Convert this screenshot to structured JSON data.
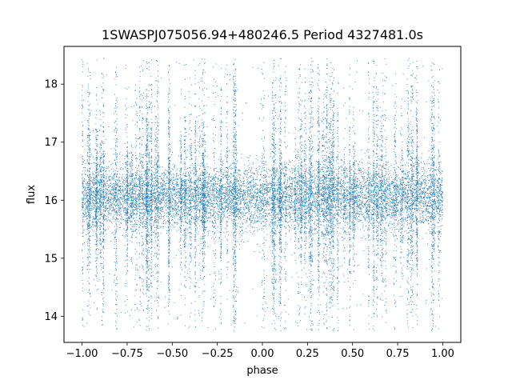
{
  "chart_data": {
    "type": "scatter",
    "title": "1SWASPJ075056.94+480246.5 Period 4327481.0s",
    "xlabel": "phase",
    "ylabel": "flux",
    "xlim": [
      -1.1,
      1.1
    ],
    "ylim": [
      13.55,
      18.65
    ],
    "xticks": [
      -1.0,
      -0.75,
      -0.5,
      -0.25,
      0.0,
      0.25,
      0.5,
      0.75,
      1.0
    ],
    "xtick_labels": [
      "−1.00",
      "−0.75",
      "−0.50",
      "−0.25",
      "0.00",
      "0.25",
      "0.50",
      "0.75",
      "1.00"
    ],
    "yticks": [
      14,
      15,
      16,
      17,
      18
    ],
    "ytick_labels": [
      "14",
      "15",
      "16",
      "17",
      "18"
    ],
    "grid": false,
    "legend": "none",
    "point_color": "#1f77b4",
    "series": [
      {
        "phase_range": [
          -1.0,
          1.0
        ],
        "flux_median": 16.05,
        "flux_core_band": [
          15.6,
          16.6
        ],
        "flux_extent": [
          13.75,
          18.45
        ],
        "summary_points": [
          {
            "x": -1.0,
            "y": 16.0
          },
          {
            "x": -0.75,
            "y": 16.1
          },
          {
            "x": -0.5,
            "y": 16.05
          },
          {
            "x": -0.25,
            "y": 16.1
          },
          {
            "x": 0.0,
            "y": 16.0
          },
          {
            "x": 0.25,
            "y": 16.05
          },
          {
            "x": 0.5,
            "y": 16.05
          },
          {
            "x": 0.75,
            "y": 16.1
          },
          {
            "x": 1.0,
            "y": 16.0
          }
        ]
      }
    ]
  }
}
